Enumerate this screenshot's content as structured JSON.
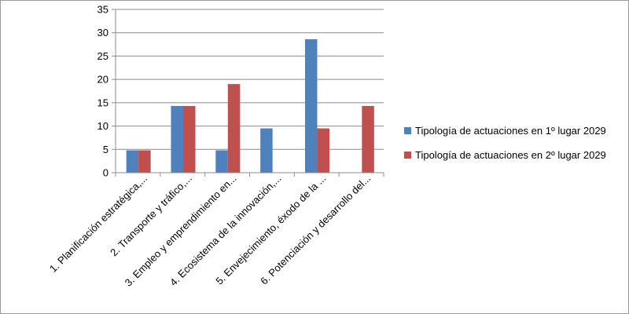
{
  "chart_data": {
    "type": "bar",
    "categories": [
      "1. Planificación estratégica,...",
      "2. Transporte y tráfico,...",
      "3. Empleo y emprendimiento en...",
      "4. Ecosistema de la innovación,...",
      "5. Envejecimiento, éxodo de la ...",
      "6. Potenciación y desarrollo del..."
    ],
    "series": [
      {
        "name": "Tipología de actuaciones en 1º lugar 2029",
        "color": "#4f81bd",
        "values": [
          4.8,
          14.3,
          4.8,
          9.5,
          28.6,
          0
        ]
      },
      {
        "name": "Tipología de actuaciones en 2º lugar 2029",
        "color": "#c0504d",
        "values": [
          4.8,
          14.3,
          19.0,
          0,
          9.5,
          14.3
        ]
      }
    ],
    "ylim": [
      0,
      35
    ],
    "yticks": [
      0,
      5,
      10,
      15,
      20,
      25,
      30,
      35
    ],
    "grid": true,
    "legend_position": "right"
  }
}
